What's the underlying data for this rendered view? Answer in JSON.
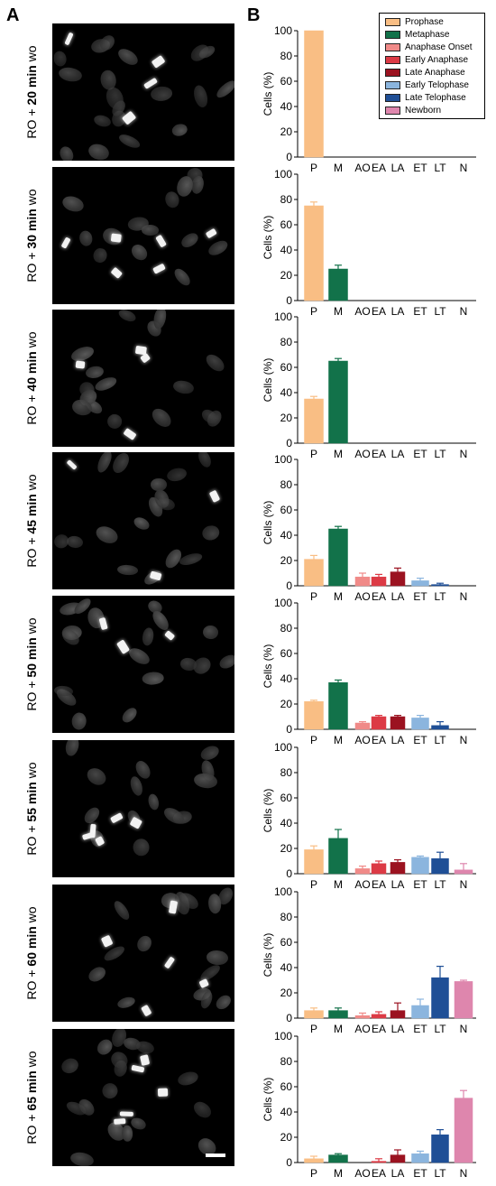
{
  "panel_labels": {
    "a": "A",
    "b": "B"
  },
  "rows": [
    {
      "prefix": "RO + ",
      "time": "20 min",
      "suffix": " wo"
    },
    {
      "prefix": "RO + ",
      "time": "30 min",
      "suffix": " wo"
    },
    {
      "prefix": "RO + ",
      "time": "40 min",
      "suffix": " wo"
    },
    {
      "prefix": "RO + ",
      "time": "45 min",
      "suffix": " wo"
    },
    {
      "prefix": "RO + ",
      "time": "50 min",
      "suffix": " wo"
    },
    {
      "prefix": "RO + ",
      "time": "55 min",
      "suffix": " wo"
    },
    {
      "prefix": "RO + ",
      "time": "60 min",
      "suffix": " wo"
    },
    {
      "prefix": "RO + ",
      "time": "65 min",
      "suffix": " wo"
    }
  ],
  "legend": [
    {
      "label": "Prophase",
      "color": "#f9be84"
    },
    {
      "label": "Metaphase",
      "color": "#12724a"
    },
    {
      "label": "Anaphase Onset",
      "color": "#f08a88"
    },
    {
      "label": "Early Anaphase",
      "color": "#dc3a45"
    },
    {
      "label": "Late Anaphase",
      "color": "#9b1220"
    },
    {
      "label": "Early Telophase",
      "color": "#8bb5de"
    },
    {
      "label": "Late Telophase",
      "color": "#1f4f96"
    },
    {
      "label": "Newborn",
      "color": "#de86ad"
    }
  ],
  "chart_data": [
    {
      "type": "bar",
      "ylabel": "Cells  (%)",
      "ylim": [
        0,
        100
      ],
      "yticks": [
        0,
        20,
        40,
        60,
        80,
        100
      ],
      "categories": [
        "P",
        "M",
        "AO",
        "EA",
        "LA",
        "ET",
        "LT",
        "N"
      ],
      "values": [
        100,
        0,
        0,
        0,
        0,
        0,
        0,
        0
      ],
      "errors": [
        0,
        0,
        0,
        0,
        0,
        0,
        0,
        0
      ]
    },
    {
      "type": "bar",
      "ylabel": "Cells  (%)",
      "ylim": [
        0,
        100
      ],
      "yticks": [
        0,
        20,
        40,
        60,
        80,
        100
      ],
      "categories": [
        "P",
        "M",
        "AO",
        "EA",
        "LA",
        "ET",
        "LT",
        "N"
      ],
      "values": [
        75,
        25,
        0,
        0,
        0,
        0,
        0,
        0
      ],
      "errors": [
        3,
        3,
        0,
        0,
        0,
        0,
        0,
        0
      ]
    },
    {
      "type": "bar",
      "ylabel": "Cells  (%)",
      "ylim": [
        0,
        100
      ],
      "yticks": [
        0,
        20,
        40,
        60,
        80,
        100
      ],
      "categories": [
        "P",
        "M",
        "AO",
        "EA",
        "LA",
        "ET",
        "LT",
        "N"
      ],
      "values": [
        35,
        65,
        0,
        0,
        0,
        0,
        0,
        0
      ],
      "errors": [
        2,
        2,
        0,
        0,
        0,
        0,
        0,
        0
      ]
    },
    {
      "type": "bar",
      "ylabel": "Cells  (%)",
      "ylim": [
        0,
        100
      ],
      "yticks": [
        0,
        20,
        40,
        60,
        80,
        100
      ],
      "categories": [
        "P",
        "M",
        "AO",
        "EA",
        "LA",
        "ET",
        "LT",
        "N"
      ],
      "values": [
        21,
        45,
        7,
        7,
        11,
        4,
        1,
        0
      ],
      "errors": [
        3,
        2,
        3,
        2,
        3,
        2,
        1,
        0
      ]
    },
    {
      "type": "bar",
      "ylabel": "Cells  (%)",
      "ylim": [
        0,
        100
      ],
      "yticks": [
        0,
        20,
        40,
        60,
        80,
        100
      ],
      "categories": [
        "P",
        "M",
        "AO",
        "EA",
        "LA",
        "ET",
        "LT",
        "N"
      ],
      "values": [
        22,
        37,
        5,
        10,
        10,
        9,
        3,
        0
      ],
      "errors": [
        1,
        2,
        1,
        1,
        1,
        2,
        3,
        0
      ]
    },
    {
      "type": "bar",
      "ylabel": "Cells  (%)",
      "ylim": [
        0,
        100
      ],
      "yticks": [
        0,
        20,
        40,
        60,
        80,
        100
      ],
      "categories": [
        "P",
        "M",
        "AO",
        "EA",
        "LA",
        "ET",
        "LT",
        "N"
      ],
      "values": [
        19,
        28,
        4,
        8,
        9,
        13,
        12,
        3
      ],
      "errors": [
        3,
        7,
        2,
        2,
        2,
        1,
        5,
        5
      ]
    },
    {
      "type": "bar",
      "ylabel": "Cells  (%)",
      "ylim": [
        0,
        100
      ],
      "yticks": [
        0,
        20,
        40,
        60,
        80,
        100
      ],
      "categories": [
        "P",
        "M",
        "AO",
        "EA",
        "LA",
        "ET",
        "LT",
        "N"
      ],
      "values": [
        6,
        6,
        2,
        3,
        6,
        10,
        32,
        29
      ],
      "errors": [
        2,
        2,
        2,
        2,
        6,
        5,
        9,
        1
      ]
    },
    {
      "type": "bar",
      "ylabel": "Cells  (%)",
      "ylim": [
        0,
        100
      ],
      "yticks": [
        0,
        20,
        40,
        60,
        80,
        100
      ],
      "categories": [
        "P",
        "M",
        "AO",
        "EA",
        "LA",
        "ET",
        "LT",
        "N"
      ],
      "values": [
        3,
        6,
        0,
        1,
        6,
        7,
        22,
        51
      ],
      "errors": [
        2,
        1,
        1,
        2,
        4,
        2,
        4,
        6
      ]
    }
  ]
}
